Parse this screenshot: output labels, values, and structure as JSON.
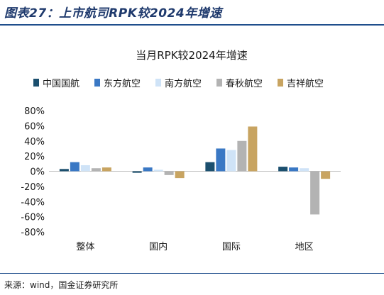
{
  "figure_title": "图表27：上市航司RPK较2024年增速",
  "source_note": "来源：wind，国金证券研究所",
  "colors": {
    "rule": "#1f4e8c",
    "title": "#1f3a6d",
    "axis": "#bfbfbf",
    "text": "#1a1a1a"
  },
  "chart_data": {
    "type": "bar",
    "title": "当月RPK较2024年增速",
    "categories": [
      "整体",
      "国内",
      "国际",
      "地区"
    ],
    "series": [
      {
        "name": "中国国航",
        "color": "#1b4f6e",
        "values": [
          3,
          -2,
          12,
          6
        ]
      },
      {
        "name": "东方航空",
        "color": "#3a78c4",
        "values": [
          12,
          5,
          30,
          5
        ]
      },
      {
        "name": "南方航空",
        "color": "#cfe3f7",
        "values": [
          8,
          2,
          28,
          4
        ]
      },
      {
        "name": "春秋航空",
        "color": "#b3b3b3",
        "values": [
          4,
          -5,
          40,
          -57
        ]
      },
      {
        "name": "吉祥航空",
        "color": "#c8a461",
        "values": [
          5,
          -9,
          59,
          -10
        ]
      }
    ],
    "ylim": [
      -80,
      80
    ],
    "yticks": [
      80,
      60,
      40,
      20,
      0,
      -20,
      -40,
      -60,
      -80
    ],
    "ytick_labels": [
      "80%",
      "60%",
      "40%",
      "20%",
      "0%",
      "-20%",
      "-40%",
      "-60%",
      "-80%"
    ],
    "legend_position": "top",
    "grid": false
  }
}
